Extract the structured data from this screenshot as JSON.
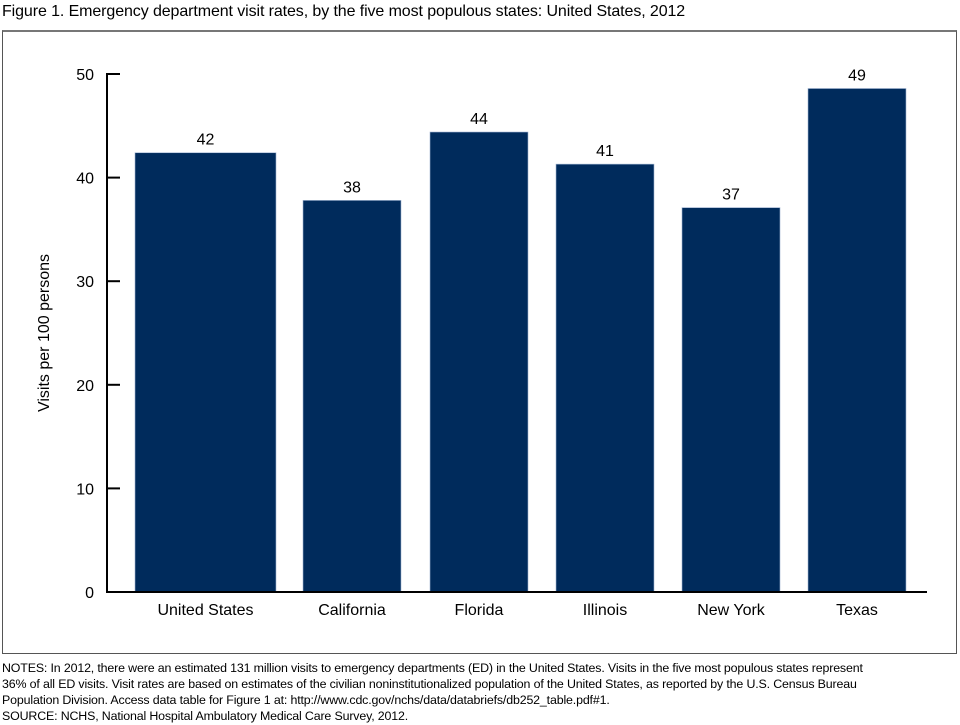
{
  "figure": {
    "title": "Figure 1. Emergency department visit rates, by the five most populous states: United States, 2012",
    "notes_lines": [
      "NOTES: In 2012, there were an estimated 131 million visits to emergency departments (ED) in the United States. Visits in the five most populous states represent",
      "36% of all ED visits. Visit rates are based on estimates of the civilian noninstitutionalized population of the United States, as reported by the U.S. Census Bureau",
      "Population Division. Access data table for Figure 1 at: http://www.cdc.gov/nchs/data/databriefs/db252_table.pdf#1.",
      "SOURCE: NCHS, National Hospital Ambulatory Medical Care Survey, 2012."
    ]
  },
  "chart_data": {
    "type": "bar",
    "title": "Figure 1. Emergency department visit rates, by the five most populous states: United States, 2012",
    "xlabel": "",
    "ylabel": "Visits per 100 persons",
    "categories": [
      "United States",
      "California",
      "Florida",
      "Illinois",
      "New York",
      "Texas"
    ],
    "values": [
      42.4,
      37.8,
      44.4,
      41.3,
      37.1,
      48.6
    ],
    "data_labels": [
      "42",
      "38",
      "44",
      "41",
      "37",
      "49"
    ],
    "ylim": [
      0,
      50
    ],
    "yticks": [
      0,
      10,
      20,
      30,
      40,
      50
    ],
    "ytick_labels": [
      "0",
      "10",
      "20",
      "30",
      "40",
      "50"
    ],
    "grid": false,
    "legend": "none",
    "bar_color": "#002b5c"
  }
}
